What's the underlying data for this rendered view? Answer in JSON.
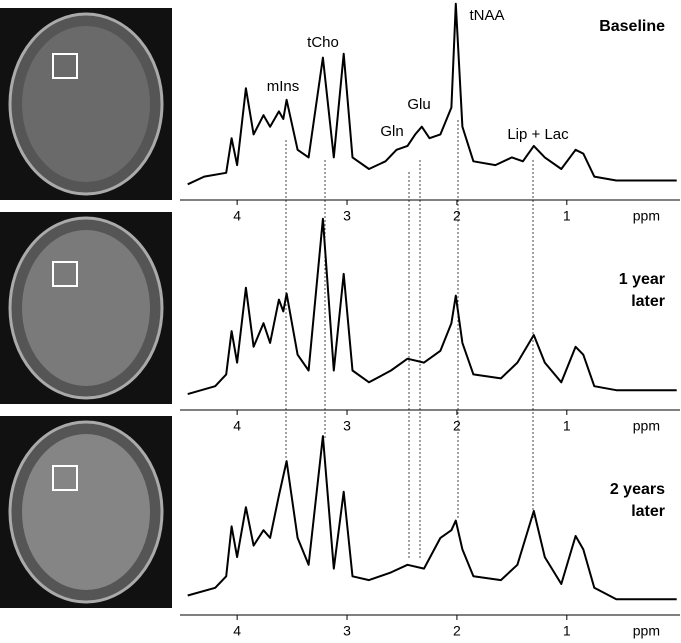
{
  "chart_data": [
    {
      "type": "line",
      "label": [
        "Baseline"
      ],
      "annotations": [
        "mIns",
        "tCho",
        "Gln",
        "Glu",
        "tNAA",
        "Lip + Lac"
      ],
      "xlabel": "ppm",
      "xlim": [
        4.52,
        -0.03
      ],
      "xticks": [
        4,
        3,
        2,
        1
      ],
      "ylim": [
        0,
        100
      ],
      "color": "#000000",
      "x": [
        4.45,
        4.3,
        4.1,
        4.05,
        4.0,
        3.92,
        3.85,
        3.76,
        3.7,
        3.62,
        3.58,
        3.55,
        3.45,
        3.35,
        3.22,
        3.12,
        3.03,
        2.95,
        2.8,
        2.65,
        2.55,
        2.45,
        2.38,
        2.32,
        2.25,
        2.15,
        2.05,
        2.01,
        1.95,
        1.85,
        1.65,
        1.5,
        1.4,
        1.3,
        1.2,
        1.05,
        0.92,
        0.85,
        0.75,
        0.55,
        0.0
      ],
      "values": [
        4,
        8,
        10,
        28,
        14,
        54,
        30,
        40,
        34,
        42,
        38,
        48,
        22,
        18,
        70,
        18,
        72,
        18,
        12,
        16,
        22,
        24,
        30,
        34,
        28,
        30,
        44,
        98,
        34,
        16,
        14,
        18,
        16,
        24,
        18,
        12,
        22,
        20,
        8,
        6,
        6
      ]
    },
    {
      "type": "line",
      "label": [
        "1 year",
        "later"
      ],
      "xlabel": "ppm",
      "xlim": [
        4.52,
        -0.03
      ],
      "xticks": [
        4,
        3,
        2,
        1
      ],
      "ylim": [
        0,
        100
      ],
      "color": "#000000",
      "x": [
        4.45,
        4.2,
        4.1,
        4.05,
        4.0,
        3.92,
        3.85,
        3.76,
        3.7,
        3.62,
        3.58,
        3.55,
        3.45,
        3.35,
        3.22,
        3.12,
        3.03,
        2.95,
        2.8,
        2.6,
        2.45,
        2.3,
        2.15,
        2.05,
        2.01,
        1.95,
        1.85,
        1.6,
        1.45,
        1.3,
        1.2,
        1.05,
        0.92,
        0.85,
        0.75,
        0.55,
        0.0
      ],
      "values": [
        4,
        8,
        14,
        36,
        20,
        58,
        28,
        40,
        30,
        52,
        46,
        55,
        24,
        16,
        93,
        16,
        65,
        16,
        10,
        16,
        22,
        20,
        26,
        40,
        54,
        30,
        14,
        12,
        20,
        34,
        20,
        10,
        28,
        24,
        8,
        6,
        6
      ]
    },
    {
      "type": "line",
      "label": [
        "2 years",
        "later"
      ],
      "xlabel": "ppm",
      "xlim": [
        4.52,
        -0.03
      ],
      "xticks": [
        4,
        3,
        2,
        1
      ],
      "ylim": [
        0,
        100
      ],
      "color": "#000000",
      "x": [
        4.45,
        4.2,
        4.1,
        4.05,
        4.0,
        3.92,
        3.85,
        3.76,
        3.7,
        3.62,
        3.55,
        3.45,
        3.35,
        3.22,
        3.12,
        3.03,
        2.95,
        2.8,
        2.6,
        2.45,
        2.3,
        2.15,
        2.05,
        2.01,
        1.95,
        1.85,
        1.6,
        1.45,
        1.3,
        1.2,
        1.05,
        0.92,
        0.85,
        0.75,
        0.55,
        0.0
      ],
      "values": [
        6,
        10,
        16,
        42,
        26,
        52,
        32,
        40,
        36,
        58,
        76,
        36,
        22,
        89,
        20,
        60,
        16,
        14,
        18,
        22,
        20,
        36,
        40,
        45,
        30,
        16,
        14,
        22,
        50,
        26,
        12,
        37,
        30,
        10,
        4,
        4
      ]
    }
  ]
}
